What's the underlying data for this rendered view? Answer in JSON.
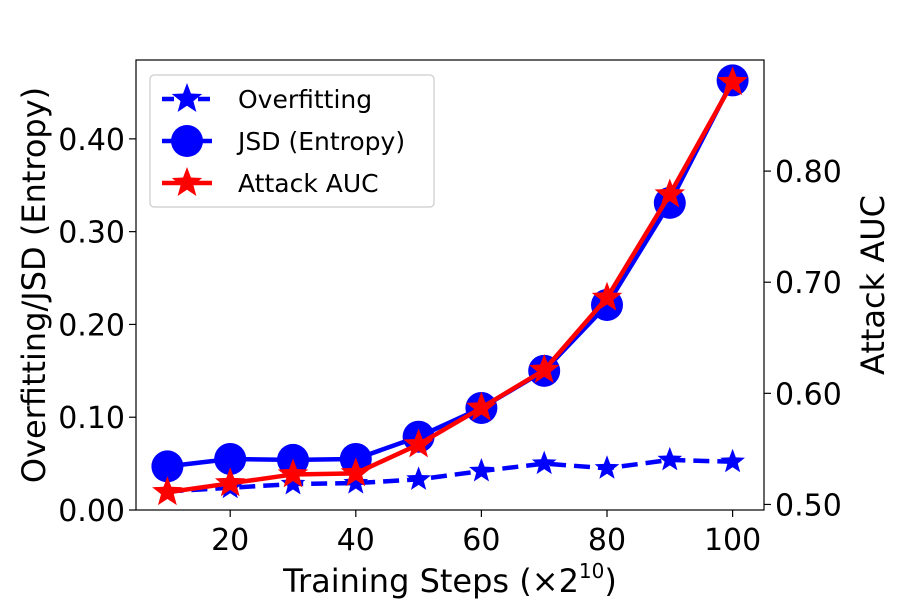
{
  "chart_data": {
    "type": "line",
    "x": [
      10,
      20,
      30,
      40,
      50,
      60,
      70,
      80,
      90,
      100
    ],
    "xlabel": "Training Steps (×2",
    "xlabel_sup": "10",
    "xlabel_end": ")",
    "ylabel_left": "Overfitting/JSD (Entropy)",
    "ylabel_right": "Attack AUC",
    "xlim": [
      5,
      105
    ],
    "ylim_left": [
      0.0,
      0.485
    ],
    "ylim_right": [
      0.495,
      0.9
    ],
    "xticks": [
      "20",
      "40",
      "60",
      "80",
      "100"
    ],
    "yticks_left": [
      "0.00",
      "0.10",
      "0.20",
      "0.30",
      "0.40"
    ],
    "yticks_right": [
      "0.50",
      "0.60",
      "0.70",
      "0.80"
    ],
    "legend_position": "upper-left",
    "series": [
      {
        "name": "Overfitting",
        "axis": "left",
        "color": "#0000ff",
        "marker": "star",
        "linestyle": "dashed",
        "values": [
          0.02,
          0.024,
          0.028,
          0.029,
          0.033,
          0.042,
          0.05,
          0.045,
          0.054,
          0.052
        ]
      },
      {
        "name": "JSD (Entropy)",
        "axis": "left",
        "color": "#0000ff",
        "marker": "circle",
        "linestyle": "solid",
        "values": [
          0.047,
          0.055,
          0.054,
          0.055,
          0.079,
          0.11,
          0.15,
          0.221,
          0.331,
          0.463
        ]
      },
      {
        "name": "Attack AUC",
        "axis": "right",
        "color": "#ff0000",
        "marker": "star",
        "linestyle": "solid",
        "values": [
          0.511,
          0.519,
          0.527,
          0.528,
          0.554,
          0.587,
          0.621,
          0.686,
          0.779,
          0.88
        ]
      }
    ]
  }
}
